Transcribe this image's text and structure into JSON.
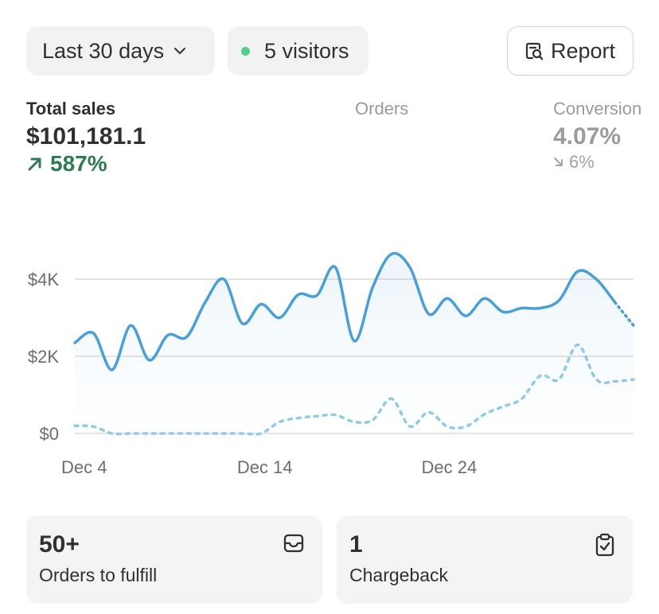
{
  "header": {
    "range_label": "Last 30 days",
    "visitors_label": "5 visitors",
    "report_label": "Report",
    "visitor_dot_color": "#4fd18b"
  },
  "metrics": {
    "total_sales": {
      "label": "Total sales",
      "value": "$101,181.1",
      "delta": "587%",
      "delta_direction": "up",
      "delta_color": "#2f7a52"
    },
    "orders": {
      "label": "Orders"
    },
    "conversion": {
      "label": "Conversion",
      "value": "4.07%",
      "delta": "6%",
      "delta_direction": "down"
    }
  },
  "chart_data": {
    "type": "line",
    "x_tick_labels": [
      "Dec 4",
      "Dec 14",
      "Dec 24"
    ],
    "y_tick_labels": [
      "$0",
      "$2K",
      "$4K"
    ],
    "ylim": [
      0,
      4000
    ],
    "grid": true,
    "series": [
      {
        "style": "solid-with-area",
        "color": "#4a9fd8",
        "x": [
          1,
          2,
          3,
          4,
          5,
          6,
          7,
          8,
          9,
          10,
          11,
          12,
          13,
          14,
          15,
          16,
          17,
          18,
          19,
          20,
          21,
          22,
          23,
          24,
          25,
          26,
          27,
          28,
          29,
          30,
          31
        ],
        "values": [
          2350,
          2600,
          1650,
          2800,
          1900,
          2550,
          2500,
          3400,
          4000,
          2850,
          3350,
          3000,
          3600,
          3580,
          4300,
          2400,
          3800,
          4650,
          4300,
          3100,
          3500,
          3050,
          3500,
          3150,
          3250,
          3250,
          3450,
          4200,
          4000,
          3400,
          2800
        ],
        "dotted_from_index": 29
      },
      {
        "style": "dotted",
        "color": "#90cbe3",
        "x": [
          1,
          2,
          3,
          4,
          5,
          6,
          7,
          8,
          9,
          10,
          11,
          12,
          13,
          14,
          15,
          16,
          17,
          18,
          19,
          20,
          21,
          22,
          23,
          24,
          25,
          26,
          27,
          28,
          29,
          30,
          31
        ],
        "values": [
          200,
          180,
          0,
          0,
          0,
          0,
          0,
          0,
          0,
          0,
          0,
          300,
          400,
          450,
          480,
          300,
          350,
          900,
          180,
          550,
          180,
          180,
          500,
          700,
          900,
          1500,
          1400,
          2300,
          1400,
          1350,
          1400
        ]
      }
    ]
  },
  "cards": [
    {
      "value": "50+",
      "label": "Orders to fulfill",
      "icon": "inbox-icon"
    },
    {
      "value": "1",
      "label": "Chargeback",
      "icon": "clipboard-check-icon"
    }
  ]
}
